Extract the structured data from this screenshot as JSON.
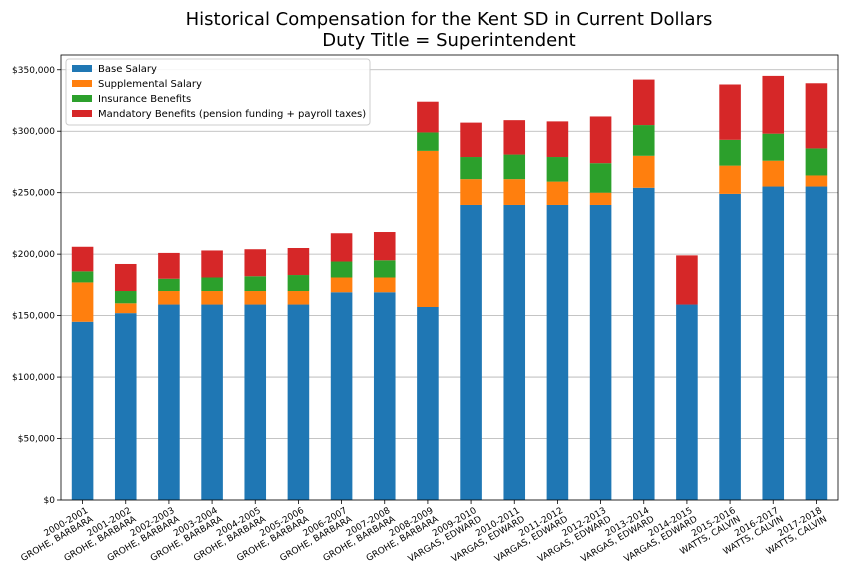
{
  "chart_data": {
    "type": "bar",
    "stacked": true,
    "title": "Historical Compensation for the Kent SD in Current Dollars",
    "subtitle": "Duty Title = Superintendent",
    "xlabel": "",
    "ylabel": "",
    "ylim": [
      0,
      362000
    ],
    "y_ticks": [
      "$0",
      "$50,000",
      "$100,000",
      "$150,000",
      "$200,000",
      "$250,000",
      "$300,000",
      "$350,000"
    ],
    "y_tick_values": [
      0,
      50000,
      100000,
      150000,
      200000,
      250000,
      300000,
      350000
    ],
    "grid": "horizontal",
    "legend_position": "upper-left",
    "categories": [
      [
        "2000-2001",
        "GROHE, BARBARA"
      ],
      [
        "2001-2002",
        "GROHE, BARBARA"
      ],
      [
        "2002-2003",
        "GROHE, BARBARA"
      ],
      [
        "2003-2004",
        "GROHE, BARBARA"
      ],
      [
        "2004-2005",
        "GROHE, BARBARA"
      ],
      [
        "2005-2006",
        "GROHE, BARBARA"
      ],
      [
        "2006-2007",
        "GROHE, BARBARA"
      ],
      [
        "2007-2008",
        "GROHE, BARBARA"
      ],
      [
        "2008-2009",
        "GROHE, BARBARA"
      ],
      [
        "2009-2010",
        "VARGAS, EDWARD"
      ],
      [
        "2010-2011",
        "VARGAS, EDWARD"
      ],
      [
        "2011-2012",
        "VARGAS, EDWARD"
      ],
      [
        "2012-2013",
        "VARGAS, EDWARD"
      ],
      [
        "2013-2014",
        "VARGAS, EDWARD"
      ],
      [
        "2014-2015",
        "VARGAS, EDWARD"
      ],
      [
        "2015-2016",
        "WATTS, CALVIN"
      ],
      [
        "2016-2017",
        "WATTS, CALVIN"
      ],
      [
        "2017-2018",
        "WATTS, CALVIN"
      ]
    ],
    "series": [
      {
        "name": "Base Salary",
        "color": "#1f77b4",
        "values": [
          145000,
          152000,
          159000,
          159000,
          159000,
          159000,
          169000,
          169000,
          157000,
          240000,
          240000,
          240000,
          240000,
          254000,
          159000,
          249000,
          255000,
          255000
        ]
      },
      {
        "name": "Supplemental Salary",
        "color": "#ff7f0e",
        "values": [
          32000,
          8000,
          11000,
          11000,
          11000,
          11000,
          12000,
          12000,
          127000,
          21000,
          21000,
          19000,
          10000,
          26000,
          0,
          23000,
          21000,
          9000
        ]
      },
      {
        "name": "Insurance Benefits",
        "color": "#2ca02c",
        "values": [
          9000,
          10000,
          10000,
          11000,
          12000,
          13000,
          13000,
          14000,
          15000,
          18000,
          20000,
          20000,
          24000,
          25000,
          0,
          21000,
          22000,
          22000
        ]
      },
      {
        "name": "Mandatory Benefits (pension funding + payroll taxes)",
        "color": "#d62728",
        "values": [
          20000,
          22000,
          21000,
          22000,
          22000,
          22000,
          23000,
          23000,
          25000,
          28000,
          28000,
          29000,
          38000,
          37000,
          40000,
          45000,
          47000,
          53000
        ]
      }
    ]
  }
}
